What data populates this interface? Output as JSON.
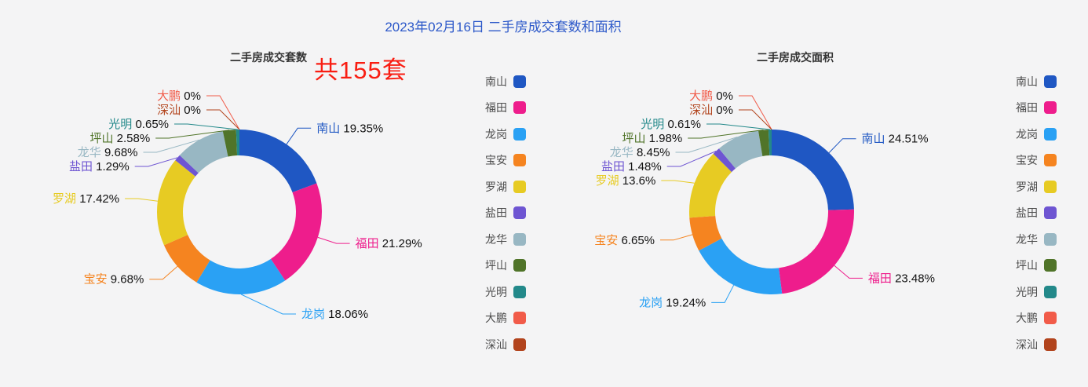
{
  "page_title": "2023年02月16日 二手房成交套数和面积",
  "colors": {
    "background": "#f4f4f5",
    "title_text": "#2c58c9",
    "annotation_text": "#f91d12",
    "subtitle_text": "#333333",
    "label_value_text": "#111111",
    "legend_text": "#4d4d4d"
  },
  "districts": [
    {
      "id": "nanshan",
      "label": "南山",
      "color": "#1f57c3"
    },
    {
      "id": "futian",
      "label": "福田",
      "color": "#ee1d8c"
    },
    {
      "id": "longgang",
      "label": "龙岗",
      "color": "#2aa1f4"
    },
    {
      "id": "baoan",
      "label": "宝安",
      "color": "#f58420"
    },
    {
      "id": "luohu",
      "label": "罗湖",
      "color": "#e7cb23"
    },
    {
      "id": "yantian",
      "label": "盐田",
      "color": "#6e55d2"
    },
    {
      "id": "longhua",
      "label": "龙华",
      "color": "#98b7c3"
    },
    {
      "id": "pingshan",
      "label": "坪山",
      "color": "#507429"
    },
    {
      "id": "guangming",
      "label": "光明",
      "color": "#23898a"
    },
    {
      "id": "dapeng",
      "label": "大鹏",
      "color": "#f15b49"
    },
    {
      "id": "shenshan",
      "label": "深汕",
      "color": "#b2441d"
    }
  ],
  "chart_data": [
    {
      "type": "pie",
      "subtype": "donut",
      "title": "二手房成交套数",
      "annotation": "共155套",
      "legend_position": "right",
      "categories": [
        "南山",
        "福田",
        "龙岗",
        "宝安",
        "罗湖",
        "盐田",
        "龙华",
        "坪山",
        "光明",
        "大鹏",
        "深汕"
      ],
      "values": [
        19.35,
        21.29,
        18.06,
        9.68,
        17.42,
        1.29,
        9.68,
        2.58,
        0.65,
        0,
        0
      ],
      "display_values": [
        "19.35%",
        "21.29%",
        "18.06%",
        "9.68%",
        "17.42%",
        "1.29%",
        "9.68%",
        "2.58%",
        "0.65%",
        "0%",
        "0%"
      ]
    },
    {
      "type": "pie",
      "subtype": "donut",
      "title": "二手房成交面积",
      "legend_position": "right",
      "categories": [
        "南山",
        "福田",
        "龙岗",
        "宝安",
        "罗湖",
        "盐田",
        "龙华",
        "坪山",
        "光明",
        "大鹏",
        "深汕"
      ],
      "values": [
        24.51,
        23.48,
        19.24,
        6.65,
        13.6,
        1.48,
        8.45,
        1.98,
        0.61,
        0,
        0
      ],
      "display_values": [
        "24.51%",
        "23.48%",
        "19.24%",
        "6.65%",
        "13.6%",
        "1.48%",
        "8.45%",
        "1.98%",
        "0.61%",
        "0%",
        "0%"
      ]
    }
  ]
}
